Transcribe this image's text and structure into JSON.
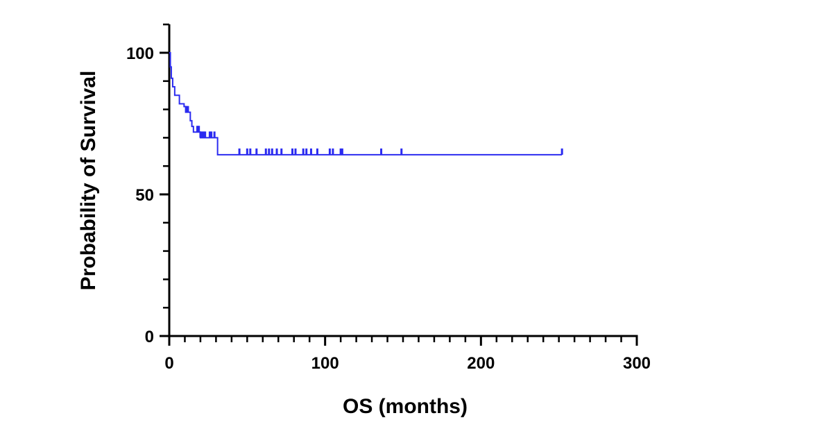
{
  "chart_data": {
    "type": "line",
    "subtype": "kaplan-meier survival curve",
    "title": "",
    "xlabel": "OS (months)",
    "ylabel": "Probability of Survival",
    "xlim": [
      0,
      300
    ],
    "ylim": [
      0,
      110
    ],
    "x_ticks": [
      0,
      100,
      200,
      300
    ],
    "x_tick_labels": [
      "0",
      "100",
      "200",
      "300"
    ],
    "y_ticks": [
      0,
      50,
      100
    ],
    "y_tick_labels": [
      "0",
      "50",
      "100"
    ],
    "grid": false,
    "legend": "none",
    "series": [
      {
        "color": "#2b2bf0",
        "steps": [
          {
            "x": 0,
            "y": 100
          },
          {
            "x": 0.7,
            "y": 95
          },
          {
            "x": 1.3,
            "y": 91
          },
          {
            "x": 2.2,
            "y": 88
          },
          {
            "x": 3.5,
            "y": 85
          },
          {
            "x": 6.5,
            "y": 82
          },
          {
            "x": 9.5,
            "y": 81
          },
          {
            "x": 10.5,
            "y": 79
          },
          {
            "x": 13.5,
            "y": 76
          },
          {
            "x": 14.5,
            "y": 74
          },
          {
            "x": 15.5,
            "y": 72
          },
          {
            "x": 20,
            "y": 70
          },
          {
            "x": 31,
            "y": 64
          }
        ],
        "end_x": 252,
        "censored": [
          {
            "x": 11,
            "y": 79
          },
          {
            "x": 12,
            "y": 79
          },
          {
            "x": 18,
            "y": 72
          },
          {
            "x": 19,
            "y": 72
          },
          {
            "x": 20,
            "y": 70
          },
          {
            "x": 21,
            "y": 70
          },
          {
            "x": 22,
            "y": 70
          },
          {
            "x": 23,
            "y": 70
          },
          {
            "x": 26,
            "y": 70
          },
          {
            "x": 27,
            "y": 70
          },
          {
            "x": 29,
            "y": 70
          },
          {
            "x": 45,
            "y": 64
          },
          {
            "x": 50,
            "y": 64
          },
          {
            "x": 52,
            "y": 64
          },
          {
            "x": 56,
            "y": 64
          },
          {
            "x": 62,
            "y": 64
          },
          {
            "x": 64,
            "y": 64
          },
          {
            "x": 66,
            "y": 64
          },
          {
            "x": 69,
            "y": 64
          },
          {
            "x": 72,
            "y": 64
          },
          {
            "x": 79,
            "y": 64
          },
          {
            "x": 81,
            "y": 64
          },
          {
            "x": 86,
            "y": 64
          },
          {
            "x": 88,
            "y": 64
          },
          {
            "x": 91,
            "y": 64
          },
          {
            "x": 95,
            "y": 64
          },
          {
            "x": 103,
            "y": 64
          },
          {
            "x": 105,
            "y": 64
          },
          {
            "x": 110,
            "y": 64
          },
          {
            "x": 111,
            "y": 64
          },
          {
            "x": 136,
            "y": 64
          },
          {
            "x": 149,
            "y": 64
          },
          {
            "x": 252,
            "y": 64
          }
        ]
      }
    ]
  }
}
